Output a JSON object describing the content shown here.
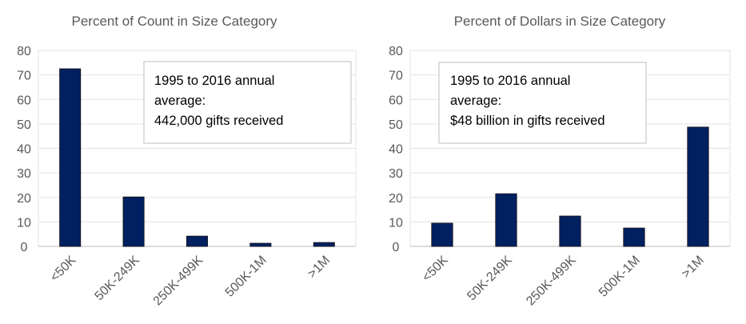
{
  "bar_color": "#002060",
  "chart_data": [
    {
      "type": "bar",
      "title": "Percent of Count in Size Category",
      "xlabel": "",
      "ylabel": "",
      "categories": [
        "<50K",
        "50K-249K",
        "250K-499K",
        "500K-1M",
        ">1M"
      ],
      "values": [
        72.5,
        20.2,
        4.2,
        1.3,
        1.6
      ],
      "ylim": [
        0,
        80
      ],
      "yticks": [
        "0",
        "10",
        "20",
        "30",
        "40",
        "50",
        "60",
        "70",
        "80"
      ],
      "grid": true,
      "legend": "none",
      "annotation": {
        "lines": [
          "1995 to 2016 annual",
          "average:",
          "442,000 gifts received"
        ],
        "position": "top-right"
      }
    },
    {
      "type": "bar",
      "title": "Percent of Dollars in Size Category",
      "xlabel": "",
      "ylabel": "",
      "categories": [
        "<50K",
        "50K-249K",
        "250K-499K",
        "500K-1M",
        ">1M"
      ],
      "values": [
        9.5,
        21.5,
        12.4,
        7.5,
        48.7
      ],
      "ylim": [
        0,
        80
      ],
      "yticks": [
        "0",
        "10",
        "20",
        "30",
        "40",
        "50",
        "60",
        "70",
        "80"
      ],
      "grid": true,
      "legend": "none",
      "annotation": {
        "lines": [
          "1995 to 2016 annual",
          "average:",
          "$48 billion in gifts received"
        ],
        "position": "top-left"
      }
    }
  ]
}
